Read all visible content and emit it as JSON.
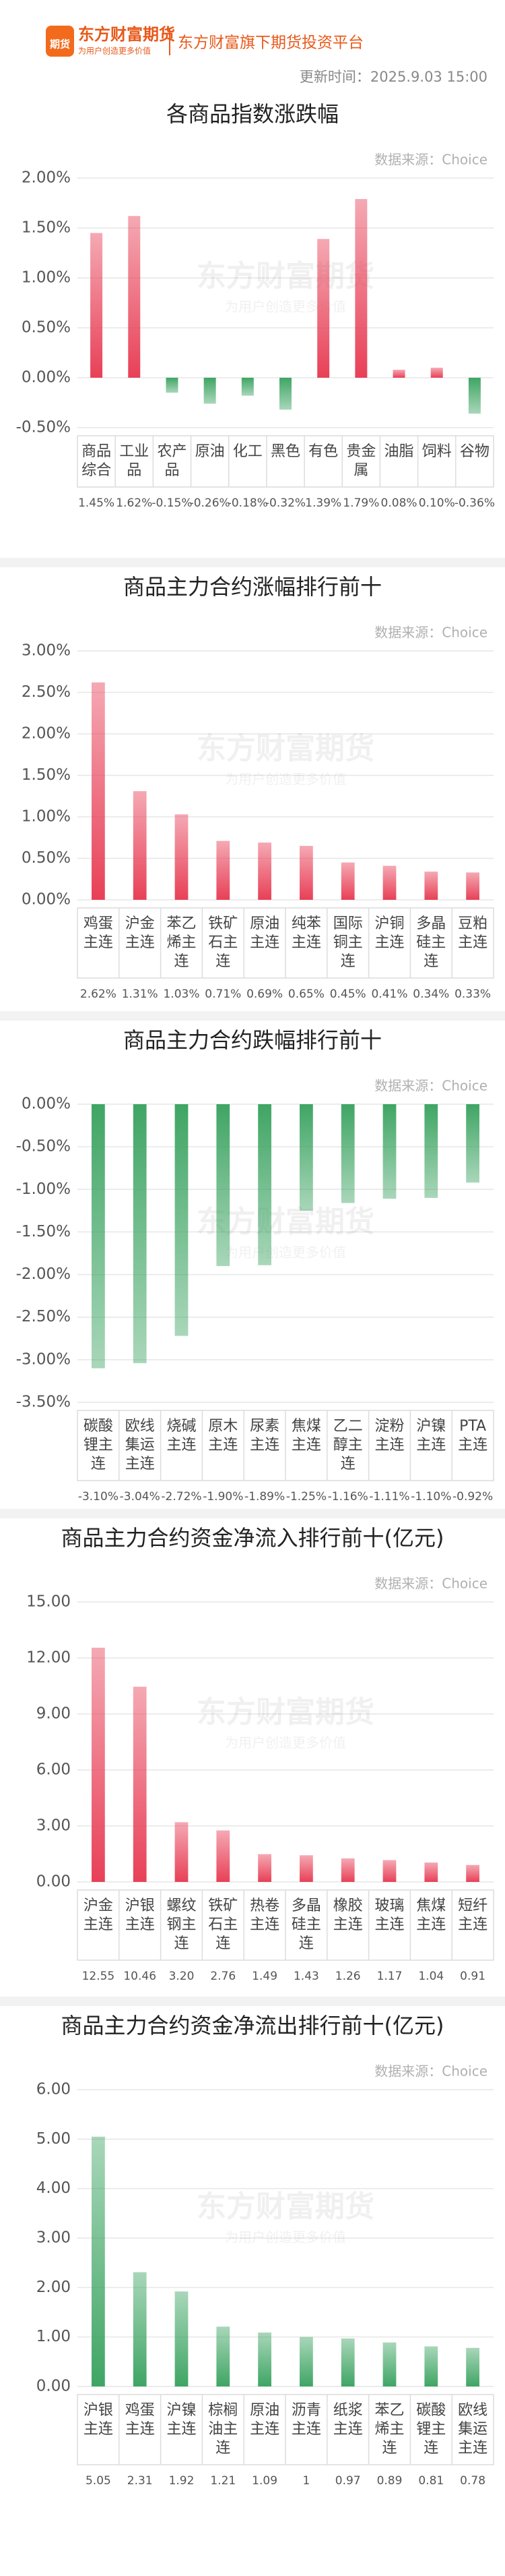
{
  "header": {
    "logo_icon": "期货",
    "brand": "东方财富期货",
    "brand_slogan": "为用户创造更多价值",
    "tagline": "东方财富旗下期货投资平台",
    "update_time": "更新时间：2025.9.03 15:00"
  },
  "watermark": {
    "title": "东方财富期货",
    "subtitle": "为用户创造更多价值"
  },
  "chart_data": [
    {
      "type": "bar",
      "title": "各商品指数涨跌幅",
      "source": "数据来源：Choice",
      "positive_color": "#e84057",
      "negative_color": "#3fa564",
      "grid": true,
      "categories": [
        "商品综合",
        "工业品",
        "农产品",
        "原油",
        "化工",
        "黑色",
        "有色",
        "贵金属",
        "油脂",
        "饲料",
        "谷物"
      ],
      "values": [
        1.45,
        1.62,
        -0.15,
        -0.26,
        -0.18,
        -0.32,
        1.39,
        1.79,
        0.08,
        0.1,
        -0.36
      ],
      "value_labels": [
        "1.45%",
        "1.62%",
        "-0.15%",
        "-0.26%",
        "-0.18%",
        "-0.32%",
        "1.39%",
        "1.79%",
        "0.08%",
        "0.10%",
        "-0.36%"
      ],
      "ylim": [
        -0.5,
        2.0
      ],
      "yticks": [
        {
          "value": -0.5,
          "label": "-0.50%"
        },
        {
          "value": 0,
          "label": "0.00%"
        },
        {
          "value": 0.5,
          "label": "0.50%"
        },
        {
          "value": 1.0,
          "label": "1.00%"
        },
        {
          "value": 1.5,
          "label": "1.50%"
        },
        {
          "value": 2.0,
          "label": "2.00%"
        }
      ]
    },
    {
      "type": "bar",
      "title": "商品主力合约涨幅排行前十",
      "source": "数据来源：Choice",
      "positive_color": "#e84057",
      "negative_color": "#3fa564",
      "grid": true,
      "categories": [
        "鸡蛋主连",
        "沪金主连",
        "苯乙烯主连",
        "铁矿石主连",
        "原油主连",
        "纯苯主连",
        "国际铜主连",
        "沪铜主连",
        "多晶硅主连",
        "豆粕主连"
      ],
      "values": [
        2.62,
        1.31,
        1.03,
        0.71,
        0.69,
        0.65,
        0.45,
        0.41,
        0.34,
        0.33
      ],
      "value_labels": [
        "2.62%",
        "1.31%",
        "1.03%",
        "0.71%",
        "0.69%",
        "0.65%",
        "0.45%",
        "0.41%",
        "0.34%",
        "0.33%"
      ],
      "ylim": [
        0,
        3.0
      ],
      "yticks": [
        {
          "value": 0,
          "label": "0.00%"
        },
        {
          "value": 0.5,
          "label": "0.50%"
        },
        {
          "value": 1.0,
          "label": "1.00%"
        },
        {
          "value": 1.5,
          "label": "1.50%"
        },
        {
          "value": 2.0,
          "label": "2.00%"
        },
        {
          "value": 2.5,
          "label": "2.50%"
        },
        {
          "value": 3.0,
          "label": "3.00%"
        }
      ]
    },
    {
      "type": "bar",
      "title": "商品主力合约跌幅排行前十",
      "source": "数据来源：Choice",
      "positive_color": "#e84057",
      "negative_color": "#3fa564",
      "grid": true,
      "categories": [
        "碳酸锂主连",
        "欧线集运主连",
        "烧碱主连",
        "原木主连",
        "尿素主连",
        "焦煤主连",
        "乙二醇主连",
        "淀粉主连",
        "沪镍主连",
        "PTA主连"
      ],
      "values": [
        -3.1,
        -3.04,
        -2.72,
        -1.9,
        -1.89,
        -1.25,
        -1.16,
        -1.11,
        -1.1,
        -0.92
      ],
      "value_labels": [
        "-3.10%",
        "-3.04%",
        "-2.72%",
        "-1.90%",
        "-1.89%",
        "-1.25%",
        "-1.16%",
        "-1.11%",
        "-1.10%",
        "-0.92%"
      ],
      "ylim": [
        -3.5,
        0
      ],
      "yticks": [
        {
          "value": 0,
          "label": "0.00%"
        },
        {
          "value": -0.5,
          "label": "-0.50%"
        },
        {
          "value": -1.0,
          "label": "-1.00%"
        },
        {
          "value": -1.5,
          "label": "-1.50%"
        },
        {
          "value": -2.0,
          "label": "-2.00%"
        },
        {
          "value": -2.5,
          "label": "-2.50%"
        },
        {
          "value": -3.0,
          "label": "-3.00%"
        },
        {
          "value": -3.5,
          "label": "-3.50%"
        }
      ]
    },
    {
      "type": "bar",
      "title": "商品主力合约资金净流入排行前十(亿元)",
      "source": "数据来源：Choice",
      "positive_color": "#e84057",
      "negative_color": "#3fa564",
      "grid": true,
      "categories": [
        "沪金主连",
        "沪银主连",
        "螺纹钢主连",
        "铁矿石主连",
        "热卷主连",
        "多晶硅主连",
        "橡胶主连",
        "玻璃主连",
        "焦煤主连",
        "短纤主连"
      ],
      "values": [
        12.55,
        10.46,
        3.2,
        2.76,
        1.49,
        1.43,
        1.26,
        1.17,
        1.04,
        0.91
      ],
      "value_labels": [
        "12.55",
        "10.46",
        "3.20",
        "2.76",
        "1.49",
        "1.43",
        "1.26",
        "1.17",
        "1.04",
        "0.91"
      ],
      "ylim": [
        0,
        15
      ],
      "yticks": [
        {
          "value": 0,
          "label": "0.00"
        },
        {
          "value": 3,
          "label": "3.00"
        },
        {
          "value": 6,
          "label": "6.00"
        },
        {
          "value": 9,
          "label": "9.00"
        },
        {
          "value": 12,
          "label": "12.00"
        },
        {
          "value": 15,
          "label": "15.00"
        }
      ]
    },
    {
      "type": "bar",
      "title": "商品主力合约资金净流出排行前十(亿元)",
      "source": "数据来源：Choice",
      "positive_color": "#3fa564",
      "negative_color": "#e84057",
      "grid": true,
      "categories": [
        "沪银主连",
        "鸡蛋主连",
        "沪镍主连",
        "棕榈油主连",
        "原油主连",
        "沥青主连",
        "纸浆主连",
        "苯乙烯主连",
        "碳酸锂主连",
        "欧线集运主连"
      ],
      "values": [
        5.05,
        2.31,
        1.92,
        1.21,
        1.09,
        1,
        0.97,
        0.89,
        0.81,
        0.78
      ],
      "value_labels": [
        "5.05",
        "2.31",
        "1.92",
        "1.21",
        "1.09",
        "1",
        "0.97",
        "0.89",
        "0.81",
        "0.78"
      ],
      "ylim": [
        0,
        6
      ],
      "yticks": [
        {
          "value": 0,
          "label": "0.00"
        },
        {
          "value": 1,
          "label": "1.00"
        },
        {
          "value": 2,
          "label": "2.00"
        },
        {
          "value": 3,
          "label": "3.00"
        },
        {
          "value": 4,
          "label": "4.00"
        },
        {
          "value": 5,
          "label": "5.00"
        },
        {
          "value": 6,
          "label": "6.00"
        }
      ]
    }
  ]
}
